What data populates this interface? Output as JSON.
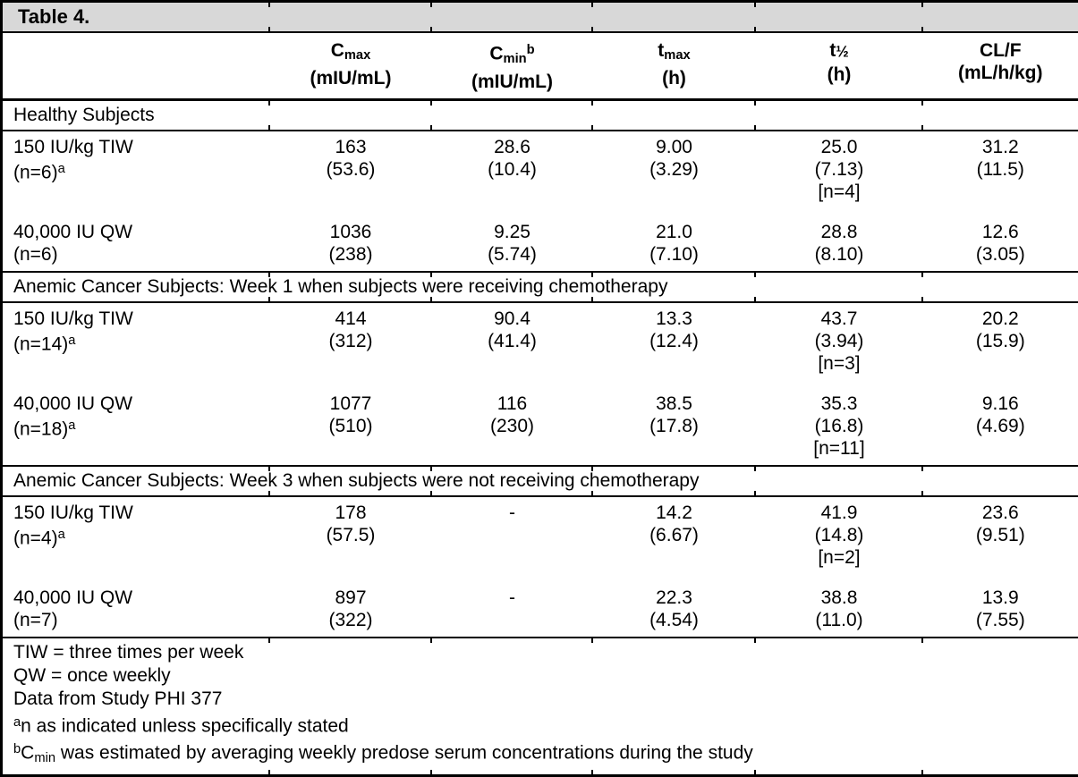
{
  "colors": {
    "title_band": "#d8d8d8",
    "border": "#000000",
    "text": "#000000"
  },
  "table": {
    "title": "Table 4.",
    "columns": [
      {
        "key": "cmax",
        "segments": [
          {
            "t": "C"
          },
          {
            "t": "max",
            "s": "sub"
          }
        ],
        "unit": "(mIU/mL)"
      },
      {
        "key": "cmin",
        "segments": [
          {
            "t": "C"
          },
          {
            "t": "min",
            "s": "sub"
          },
          {
            "t": "b",
            "s": "sup"
          }
        ],
        "unit": "(mIU/mL)"
      },
      {
        "key": "tmax",
        "segments": [
          {
            "t": "t"
          },
          {
            "t": "max",
            "s": "sub"
          }
        ],
        "unit": "(h)"
      },
      {
        "key": "thalf",
        "segments": [
          {
            "t": "t"
          },
          {
            "t": "½",
            "s": "frac"
          }
        ],
        "unit": "(h)"
      },
      {
        "key": "clf",
        "segments": [
          {
            "t": "CL/F"
          }
        ],
        "unit": "(mL/h/kg)"
      }
    ],
    "sections": [
      {
        "header": "Healthy Subjects",
        "rows": [
          {
            "label": "150 IU/kg TIW",
            "label2": "(n=6)",
            "label2_sup": "a",
            "cells": [
              [
                "163",
                "(53.6)"
              ],
              [
                "28.6",
                "(10.4)"
              ],
              [
                "9.00",
                "(3.29)"
              ],
              [
                "25.0",
                "(7.13)",
                "[n=4]"
              ],
              [
                "31.2",
                "(11.5)"
              ]
            ]
          },
          {
            "label": "40,000 IU QW",
            "label2": "(n=6)",
            "label2_sup": "",
            "cells": [
              [
                "1036",
                "(238)"
              ],
              [
                "9.25",
                "(5.74)"
              ],
              [
                "21.0",
                "(7.10)"
              ],
              [
                "28.8",
                "(8.10)"
              ],
              [
                "12.6",
                "(3.05)"
              ]
            ]
          }
        ]
      },
      {
        "header": "Anemic Cancer Subjects: Week 1 when subjects were receiving chemotherapy",
        "rows": [
          {
            "label": "150 IU/kg TIW",
            "label2": "(n=14)",
            "label2_sup": "a",
            "cells": [
              [
                "414",
                "(312)"
              ],
              [
                "90.4",
                "(41.4)"
              ],
              [
                "13.3",
                "(12.4)"
              ],
              [
                "43.7",
                "(3.94)",
                "[n=3]"
              ],
              [
                "20.2",
                "(15.9)"
              ]
            ]
          },
          {
            "label": "40,000 IU QW",
            "label2": "(n=18)",
            "label2_sup": "a",
            "cells": [
              [
                "1077",
                "(510)"
              ],
              [
                "116",
                "(230)"
              ],
              [
                "38.5",
                "(17.8)"
              ],
              [
                "35.3",
                "(16.8)",
                "[n=11]"
              ],
              [
                "9.16",
                "(4.69)"
              ]
            ]
          }
        ]
      },
      {
        "header": "Anemic Cancer Subjects: Week 3 when subjects were not receiving chemotherapy",
        "rows": [
          {
            "label": "150 IU/kg TIW",
            "label2": "(n=4)",
            "label2_sup": "a",
            "cells": [
              [
                "178",
                "(57.5)"
              ],
              [
                "-"
              ],
              [
                "14.2",
                "(6.67)"
              ],
              [
                "41.9",
                "(14.8)",
                "[n=2]"
              ],
              [
                "23.6",
                "(9.51)"
              ]
            ]
          },
          {
            "label": "40,000 IU QW",
            "label2": "(n=7)",
            "label2_sup": "",
            "cells": [
              [
                "897",
                "(322)"
              ],
              [
                "-"
              ],
              [
                "22.3",
                "(4.54)"
              ],
              [
                "38.8",
                "(11.0)"
              ],
              [
                "13.9",
                "(7.55)"
              ]
            ]
          }
        ]
      }
    ],
    "footnotes": [
      {
        "segments": [
          {
            "t": "TIW = three times per week"
          }
        ]
      },
      {
        "segments": [
          {
            "t": "QW = once weekly"
          }
        ]
      },
      {
        "segments": [
          {
            "t": "Data from Study PHI 377"
          }
        ]
      },
      {
        "segments": [
          {
            "t": "a",
            "s": "sup"
          },
          {
            "t": "n as indicated unless specifically stated"
          }
        ]
      },
      {
        "segments": [
          {
            "t": "b",
            "s": "sup"
          },
          {
            "t": "C"
          },
          {
            "t": "min",
            "s": "sub"
          },
          {
            "t": " was estimated by averaging weekly predose serum concentrations during the study"
          }
        ]
      }
    ]
  }
}
